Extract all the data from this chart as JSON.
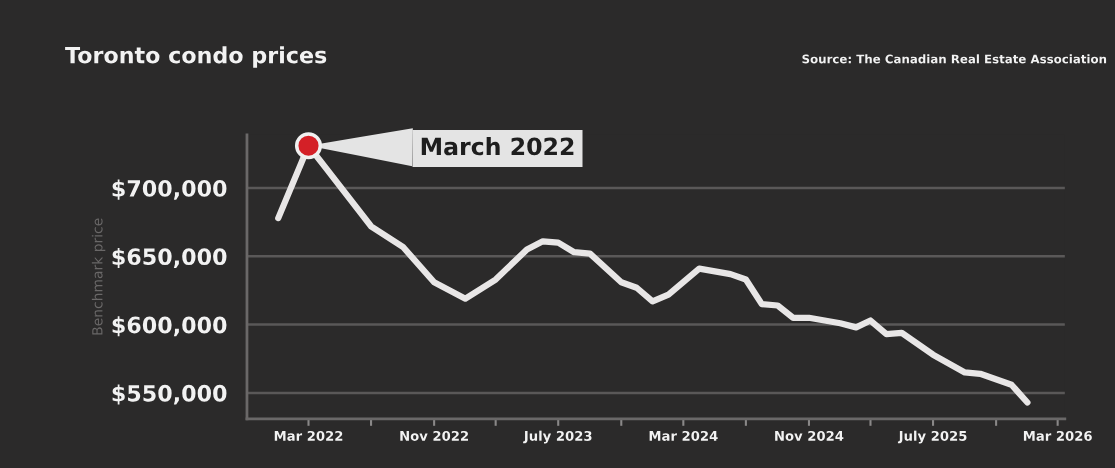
{
  "chart_data": {
    "type": "line",
    "title": "Toronto condo prices",
    "ylabel": "Benchmark price",
    "annotations": [
      "Source: The Canadian Real Estate Association",
      {
        "text": "March 2022",
        "x": "2022-03",
        "y": 731000
      }
    ],
    "x": [
      "2022-01",
      "2022-03",
      "2022-04",
      "2022-07",
      "2022-09",
      "2022-11",
      "2023-01",
      "2023-03",
      "2023-05",
      "2023-06",
      "2023-07",
      "2023-08",
      "2023-09",
      "2023-11",
      "2023-12",
      "2024-01",
      "2024-02",
      "2024-04",
      "2024-06",
      "2024-07",
      "2024-08",
      "2024-09",
      "2024-10",
      "2024-11",
      "2025-01",
      "2025-02",
      "2025-03",
      "2025-04",
      "2025-05",
      "2025-07",
      "2025-09",
      "2025-10",
      "2025-12",
      "2026-01"
    ],
    "series": [
      {
        "color": "#e8e6e6",
        "values": [
          678000,
          731000,
          716000,
          672000,
          657000,
          631000,
          619000,
          633000,
          655000,
          661000,
          660000,
          653000,
          652000,
          631000,
          627000,
          617000,
          622000,
          641000,
          637000,
          633000,
          615000,
          614000,
          605000,
          605000,
          601000,
          598000,
          603000,
          593000,
          594000,
          578000,
          565000,
          564000,
          556000,
          543000
        ]
      }
    ],
    "xlim": [
      "2021-11",
      "2026-03-15"
    ],
    "ylim": [
      531000,
      739000
    ],
    "xticks": [
      {
        "value": "2022-03",
        "label": "Mar 2022"
      },
      {
        "value": "2022-07",
        "label": null
      },
      {
        "value": "2022-11",
        "label": "Nov 2022"
      },
      {
        "value": "2023-03",
        "label": null
      },
      {
        "value": "2023-07",
        "label": "July 2023"
      },
      {
        "value": "2023-11",
        "label": null
      },
      {
        "value": "2024-03",
        "label": "Mar 2024"
      },
      {
        "value": "2024-07",
        "label": null
      },
      {
        "value": "2024-11",
        "label": "Nov 2024"
      },
      {
        "value": "2025-03",
        "label": null
      },
      {
        "value": "2025-07",
        "label": "July 2025"
      },
      {
        "value": "2025-11",
        "label": null
      },
      {
        "value": "2026-03",
        "label": "Mar 2026"
      }
    ],
    "yticks": [
      {
        "value": 550000,
        "label": "$550,000"
      },
      {
        "value": 600000,
        "label": "$600,000"
      },
      {
        "value": 650000,
        "label": "$650,000"
      },
      {
        "value": 700000,
        "label": "$700,000"
      }
    ],
    "grid": "y",
    "legend": false,
    "marker": "none",
    "line_style": "solid"
  }
}
